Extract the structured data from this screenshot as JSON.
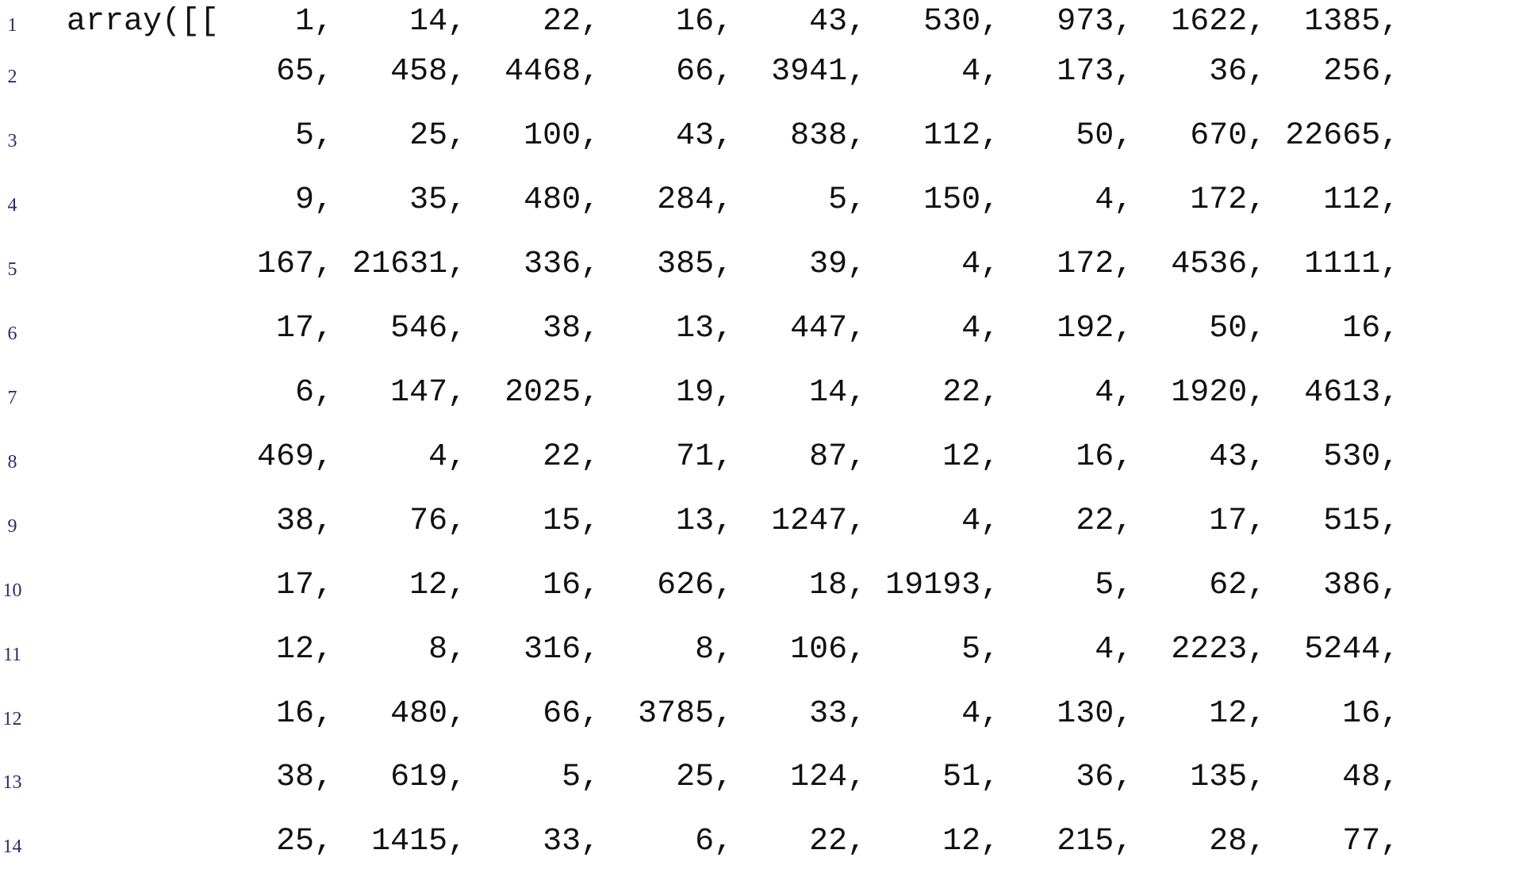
{
  "editor": {
    "lines": [
      {
        "number": "1",
        "text": "array([[    1,    14,    22,    16,    43,   530,   973,  1622,  1385,"
      },
      {
        "number": "2",
        "text": "           65,   458,  4468,    66,  3941,     4,   173,    36,   256,"
      },
      {
        "number": "3",
        "text": "            5,    25,   100,    43,   838,   112,    50,   670, 22665,"
      },
      {
        "number": "4",
        "text": "            9,    35,   480,   284,     5,   150,     4,   172,   112,"
      },
      {
        "number": "5",
        "text": "          167, 21631,   336,   385,    39,     4,   172,  4536,  1111,"
      },
      {
        "number": "6",
        "text": "           17,   546,    38,    13,   447,     4,   192,    50,    16,"
      },
      {
        "number": "7",
        "text": "            6,   147,  2025,    19,    14,    22,     4,  1920,  4613,"
      },
      {
        "number": "8",
        "text": "          469,     4,    22,    71,    87,    12,    16,    43,   530,"
      },
      {
        "number": "9",
        "text": "           38,    76,    15,    13,  1247,     4,    22,    17,   515,"
      },
      {
        "number": "10",
        "text": "           17,    12,    16,   626,    18, 19193,     5,    62,   386,"
      },
      {
        "number": "11",
        "text": "           12,     8,   316,     8,   106,     5,     4,  2223,  5244,"
      },
      {
        "number": "12",
        "text": "           16,   480,    66,  3785,    33,     4,   130,    12,    16,"
      },
      {
        "number": "13",
        "text": "           38,   619,     5,    25,   124,    51,    36,   135,    48,"
      },
      {
        "number": "14",
        "text": "           25,  1415,    33,     6,    22,    12,   215,    28,    77,"
      }
    ]
  }
}
